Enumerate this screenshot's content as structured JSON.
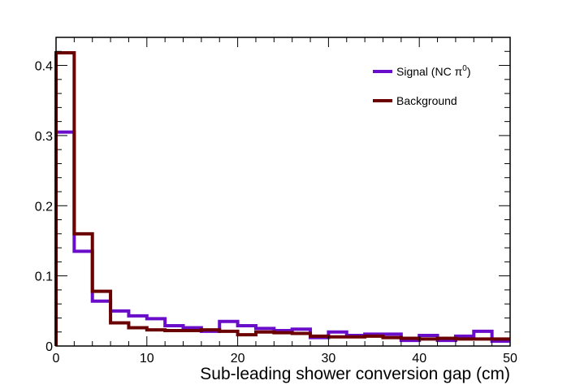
{
  "chart_data": {
    "type": "histogram",
    "xlabel": "Sub-leading shower conversion gap (cm)",
    "ylabel": "",
    "xlim": [
      0,
      50
    ],
    "ylim": [
      0,
      0.44
    ],
    "xticks": [
      "0",
      "10",
      "20",
      "30",
      "40",
      "50"
    ],
    "yticks": [
      "0",
      "0.1",
      "0.2",
      "0.3",
      "0.4"
    ],
    "bin_edges": [
      0,
      2,
      4,
      6,
      8,
      10,
      12,
      14,
      16,
      18,
      20,
      22,
      24,
      26,
      28,
      30,
      32,
      34,
      36,
      38,
      40,
      42,
      44,
      46,
      48,
      50
    ],
    "legend_position": "top-right",
    "series": [
      {
        "name": "Signal (NC π",
        "superscript": "0",
        "suffix": ")",
        "color": "#6a0dca",
        "values": [
          0.305,
          0.135,
          0.064,
          0.05,
          0.043,
          0.039,
          0.029,
          0.026,
          0.021,
          0.035,
          0.029,
          0.025,
          0.022,
          0.024,
          0.012,
          0.02,
          0.015,
          0.017,
          0.017,
          0.008,
          0.015,
          0.008,
          0.014,
          0.021,
          0.007
        ]
      },
      {
        "name": "Background",
        "color": "#6b0000",
        "values": [
          0.418,
          0.16,
          0.078,
          0.033,
          0.026,
          0.023,
          0.022,
          0.022,
          0.023,
          0.021,
          0.016,
          0.02,
          0.019,
          0.018,
          0.014,
          0.013,
          0.013,
          0.014,
          0.012,
          0.011,
          0.01,
          0.011,
          0.01,
          0.01,
          0.01
        ]
      }
    ]
  }
}
